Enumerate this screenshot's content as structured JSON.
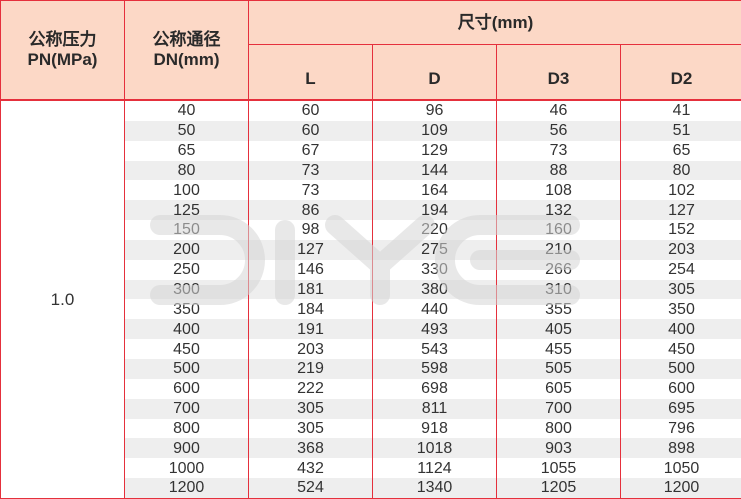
{
  "header": {
    "pn_label": "公称压力",
    "pn_unit": "PN(MPa)",
    "dn_label": "公称通径",
    "dn_unit": "DN(mm)",
    "dimensions_label": "尺寸(mm)",
    "columns": [
      "L",
      "D",
      "D3",
      "D2"
    ]
  },
  "pn_value": "1.0",
  "rows": [
    [
      "40",
      "60",
      "96",
      "46",
      "41"
    ],
    [
      "50",
      "60",
      "109",
      "56",
      "51"
    ],
    [
      "65",
      "67",
      "129",
      "73",
      "65"
    ],
    [
      "80",
      "73",
      "144",
      "88",
      "80"
    ],
    [
      "100",
      "73",
      "164",
      "108",
      "102"
    ],
    [
      "125",
      "86",
      "194",
      "132",
      "127"
    ],
    [
      "150",
      "98",
      "220",
      "160",
      "152"
    ],
    [
      "200",
      "127",
      "275",
      "210",
      "203"
    ],
    [
      "250",
      "146",
      "330",
      "266",
      "254"
    ],
    [
      "300",
      "181",
      "380",
      "310",
      "305"
    ],
    [
      "350",
      "184",
      "440",
      "355",
      "350"
    ],
    [
      "400",
      "191",
      "493",
      "405",
      "400"
    ],
    [
      "450",
      "203",
      "543",
      "455",
      "450"
    ],
    [
      "500",
      "219",
      "598",
      "505",
      "500"
    ],
    [
      "600",
      "222",
      "698",
      "605",
      "600"
    ],
    [
      "700",
      "305",
      "811",
      "700",
      "695"
    ],
    [
      "800",
      "305",
      "918",
      "800",
      "796"
    ],
    [
      "900",
      "368",
      "1018",
      "903",
      "898"
    ],
    [
      "1000",
      "432",
      "1124",
      "1055",
      "1050"
    ],
    [
      "1200",
      "524",
      "1340",
      "1205",
      "1200"
    ]
  ],
  "watermark": "DIYE",
  "colors": {
    "border": "#e5303c",
    "header_bg": "#fcd8c6",
    "stripe": "#eeeeee"
  }
}
